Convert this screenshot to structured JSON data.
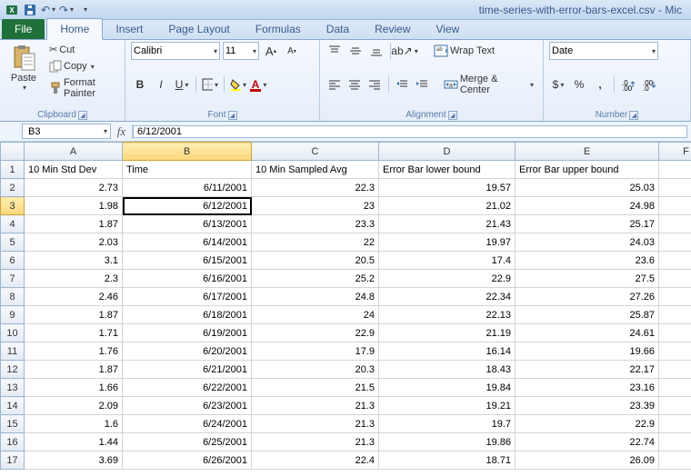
{
  "titlebar": {
    "filename": "time-series-with-error-bars-excel.csv - Mic"
  },
  "tabs": {
    "file": "File",
    "home": "Home",
    "insert": "Insert",
    "pagelayout": "Page Layout",
    "formulas": "Formulas",
    "data": "Data",
    "review": "Review",
    "view": "View"
  },
  "clipboard": {
    "paste": "Paste",
    "cut": "Cut",
    "copy": "Copy",
    "format_painter": "Format Painter",
    "group": "Clipboard"
  },
  "font": {
    "name": "Calibri",
    "size": "11",
    "group": "Font"
  },
  "alignment": {
    "wrap": "Wrap Text",
    "merge": "Merge & Center",
    "group": "Alignment"
  },
  "number": {
    "format": "Date",
    "group": "Number"
  },
  "namebox": "B3",
  "formula": "6/12/2001",
  "columns": [
    "A",
    "B",
    "C",
    "D",
    "E",
    "F"
  ],
  "headers": {
    "A": "10 Min Std Dev",
    "B": "Time",
    "C": "10 Min Sampled Avg",
    "D": "Error Bar lower bound",
    "E": "Error Bar upper bound"
  },
  "rows": [
    {
      "n": 2,
      "A": "2.73",
      "B": "6/11/2001",
      "C": "22.3",
      "D": "19.57",
      "E": "25.03"
    },
    {
      "n": 3,
      "A": "1.98",
      "B": "6/12/2001",
      "C": "23",
      "D": "21.02",
      "E": "24.98"
    },
    {
      "n": 4,
      "A": "1.87",
      "B": "6/13/2001",
      "C": "23.3",
      "D": "21.43",
      "E": "25.17"
    },
    {
      "n": 5,
      "A": "2.03",
      "B": "6/14/2001",
      "C": "22",
      "D": "19.97",
      "E": "24.03"
    },
    {
      "n": 6,
      "A": "3.1",
      "B": "6/15/2001",
      "C": "20.5",
      "D": "17.4",
      "E": "23.6"
    },
    {
      "n": 7,
      "A": "2.3",
      "B": "6/16/2001",
      "C": "25.2",
      "D": "22.9",
      "E": "27.5"
    },
    {
      "n": 8,
      "A": "2.46",
      "B": "6/17/2001",
      "C": "24.8",
      "D": "22.34",
      "E": "27.26"
    },
    {
      "n": 9,
      "A": "1.87",
      "B": "6/18/2001",
      "C": "24",
      "D": "22.13",
      "E": "25.87"
    },
    {
      "n": 10,
      "A": "1.71",
      "B": "6/19/2001",
      "C": "22.9",
      "D": "21.19",
      "E": "24.61"
    },
    {
      "n": 11,
      "A": "1.76",
      "B": "6/20/2001",
      "C": "17.9",
      "D": "16.14",
      "E": "19.66"
    },
    {
      "n": 12,
      "A": "1.87",
      "B": "6/21/2001",
      "C": "20.3",
      "D": "18.43",
      "E": "22.17"
    },
    {
      "n": 13,
      "A": "1.66",
      "B": "6/22/2001",
      "C": "21.5",
      "D": "19.84",
      "E": "23.16"
    },
    {
      "n": 14,
      "A": "2.09",
      "B": "6/23/2001",
      "C": "21.3",
      "D": "19.21",
      "E": "23.39"
    },
    {
      "n": 15,
      "A": "1.6",
      "B": "6/24/2001",
      "C": "21.3",
      "D": "19.7",
      "E": "22.9"
    },
    {
      "n": 16,
      "A": "1.44",
      "B": "6/25/2001",
      "C": "21.3",
      "D": "19.86",
      "E": "22.74"
    },
    {
      "n": 17,
      "A": "3.69",
      "B": "6/26/2001",
      "C": "22.4",
      "D": "18.71",
      "E": "26.09"
    }
  ],
  "active": {
    "cell": "B3",
    "row": 3,
    "col": "B"
  },
  "colors": {
    "ribbon_bg_top": "#f5f9fe",
    "ribbon_bg_bot": "#e6eef9",
    "border": "#8ba7cc",
    "file_tab": "#1e7138",
    "highlight": "#f9d77a"
  }
}
